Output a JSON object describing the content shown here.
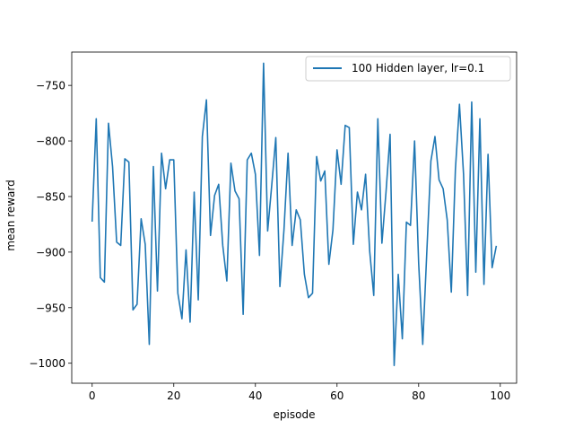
{
  "chart_data": {
    "type": "line",
    "title": "",
    "xlabel": "episode",
    "ylabel": "mean reward",
    "xlim": [
      -5,
      104
    ],
    "ylim": [
      -1018,
      -720
    ],
    "xticks": [
      0,
      20,
      40,
      60,
      80,
      100
    ],
    "xtick_labels": [
      "0",
      "20",
      "40",
      "60",
      "80",
      "100"
    ],
    "yticks": [
      -750,
      -800,
      -850,
      -900,
      -950,
      -1000
    ],
    "ytick_labels": [
      "−750",
      "−800",
      "−850",
      "−900",
      "−950",
      "−1000"
    ],
    "grid": false,
    "legend_position": "top-right",
    "series": [
      {
        "name": "100 Hidden layer, lr=0.1",
        "color": "#1f77b4",
        "x": [
          0,
          1,
          2,
          3,
          4,
          5,
          6,
          7,
          8,
          9,
          10,
          11,
          12,
          13,
          14,
          15,
          16,
          17,
          18,
          19,
          20,
          21,
          22,
          23,
          24,
          25,
          26,
          27,
          28,
          29,
          30,
          31,
          32,
          33,
          34,
          35,
          36,
          37,
          38,
          39,
          40,
          41,
          42,
          43,
          44,
          45,
          46,
          47,
          48,
          49,
          50,
          51,
          52,
          53,
          54,
          55,
          56,
          57,
          58,
          59,
          60,
          61,
          62,
          63,
          64,
          65,
          66,
          67,
          68,
          69,
          70,
          71,
          72,
          73,
          74,
          75,
          76,
          77,
          78,
          79,
          80,
          81,
          82,
          83,
          84,
          85,
          86,
          87,
          88,
          89,
          90,
          91,
          92,
          93,
          94,
          95,
          96,
          97,
          98,
          99
        ],
        "values": [
          -872,
          -780,
          -923,
          -927,
          -784,
          -823,
          -891,
          -894,
          -816,
          -819,
          -952,
          -947,
          -870,
          -893,
          -983,
          -823,
          -935,
          -811,
          -843,
          -817,
          -817,
          -937,
          -960,
          -898,
          -963,
          -846,
          -943,
          -796,
          -763,
          -885,
          -849,
          -839,
          -894,
          -926,
          -820,
          -845,
          -852,
          -956,
          -817,
          -811,
          -830,
          -903,
          -730,
          -881,
          -840,
          -797,
          -931,
          -880,
          -811,
          -894,
          -862,
          -871,
          -920,
          -941,
          -937,
          -814,
          -836,
          -827,
          -911,
          -880,
          -808,
          -839,
          -786,
          -788,
          -893,
          -846,
          -862,
          -830,
          -899,
          -939,
          -780,
          -892,
          -846,
          -794,
          -1002,
          -920,
          -978,
          -873,
          -876,
          -800,
          -910,
          -983,
          -900,
          -818,
          -796,
          -835,
          -843,
          -871,
          -936,
          -826,
          -767,
          -830,
          -939,
          -765,
          -918,
          -780,
          -929,
          -812,
          -914,
          -895
        ]
      }
    ]
  }
}
